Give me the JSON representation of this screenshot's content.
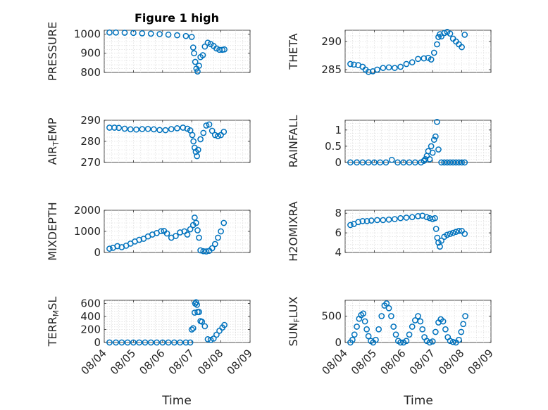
{
  "figure_title": "Figure 1 high",
  "chart_data": [
    {
      "type": "scatter",
      "panel": "pressure",
      "ylabel_parts": [
        {
          "t": "PRESSURE"
        }
      ],
      "ylim": [
        800,
        1020
      ],
      "yticks": [
        800,
        900,
        1000
      ],
      "xlim": [
        0,
        5
      ],
      "xticks": [
        0,
        1,
        2,
        3,
        4,
        5
      ],
      "x": [
        0.18,
        0.4,
        0.7,
        1.0,
        1.3,
        1.6,
        1.9,
        2.2,
        2.5,
        2.8,
        3.0,
        3.05,
        3.08,
        3.12,
        3.16,
        3.2,
        3.25,
        3.3,
        3.38,
        3.45,
        3.55,
        3.65,
        3.75,
        3.85,
        3.95,
        4.05,
        4.12
      ],
      "y": [
        1008,
        1008,
        1007,
        1006,
        1004,
        1002,
        1000,
        997,
        994,
        990,
        985,
        930,
        900,
        855,
        820,
        805,
        835,
        880,
        890,
        935,
        955,
        948,
        938,
        925,
        918,
        918,
        920
      ]
    },
    {
      "type": "scatter",
      "panel": "theta",
      "ylabel_parts": [
        {
          "t": "THETA"
        }
      ],
      "ylim": [
        284.5,
        292
      ],
      "yticks": [
        285,
        290
      ],
      "xlim": [
        0,
        5
      ],
      "xticks": [
        0,
        1,
        2,
        3,
        4,
        5
      ],
      "x": [
        0.18,
        0.3,
        0.45,
        0.6,
        0.7,
        0.8,
        0.95,
        1.1,
        1.3,
        1.5,
        1.7,
        1.9,
        2.1,
        2.3,
        2.5,
        2.7,
        2.85,
        2.95,
        3.05,
        3.15,
        3.2,
        3.25,
        3.3,
        3.4,
        3.5,
        3.6,
        3.7,
        3.8,
        3.9,
        4.0,
        4.1
      ],
      "y": [
        286.0,
        285.9,
        285.8,
        285.5,
        285.0,
        284.6,
        284.7,
        285.0,
        285.3,
        285.4,
        285.3,
        285.5,
        286.0,
        286.3,
        286.9,
        287.0,
        287.1,
        286.8,
        288.0,
        289.5,
        290.8,
        291.3,
        290.9,
        291.5,
        291.7,
        291.4,
        290.5,
        290.0,
        289.5,
        289.0,
        291.2
      ]
    },
    {
      "type": "scatter",
      "panel": "air_temp",
      "ylabel_parts": [
        {
          "t": "AIR"
        },
        {
          "t": "T",
          "sub": true
        },
        {
          "t": "EMP"
        }
      ],
      "ylim": [
        270,
        290
      ],
      "yticks": [
        270,
        280,
        290
      ],
      "xlim": [
        0,
        5
      ],
      "xticks": [
        0,
        1,
        2,
        3,
        4,
        5
      ],
      "x": [
        0.18,
        0.35,
        0.5,
        0.7,
        0.9,
        1.1,
        1.3,
        1.5,
        1.7,
        1.9,
        2.1,
        2.3,
        2.5,
        2.7,
        2.85,
        2.95,
        3.02,
        3.06,
        3.1,
        3.14,
        3.18,
        3.22,
        3.3,
        3.4,
        3.5,
        3.6,
        3.7,
        3.8,
        3.9,
        4.0,
        4.1
      ],
      "y": [
        286.5,
        286.5,
        286.4,
        286.0,
        285.7,
        285.6,
        285.8,
        285.9,
        285.7,
        285.4,
        285.3,
        285.8,
        286.2,
        286.5,
        286.0,
        285.2,
        283.0,
        280.0,
        277.0,
        275.0,
        273.0,
        276.0,
        281.0,
        284.0,
        287.5,
        288.0,
        285.0,
        283.0,
        282.5,
        283.0,
        284.5
      ]
    },
    {
      "type": "scatter",
      "panel": "rainfall",
      "ylabel_parts": [
        {
          "t": "RAINFALL"
        }
      ],
      "ylim": [
        0,
        1.3
      ],
      "yticks": [
        0,
        0.5,
        1
      ],
      "xlim": [
        0,
        5
      ],
      "xticks": [
        0,
        1,
        2,
        3,
        4,
        5
      ],
      "x": [
        0.18,
        0.4,
        0.6,
        0.8,
        1.0,
        1.2,
        1.4,
        1.6,
        1.8,
        2.0,
        2.2,
        2.4,
        2.6,
        2.7,
        2.75,
        2.8,
        2.85,
        2.9,
        2.95,
        3.0,
        3.05,
        3.1,
        3.15,
        3.2,
        3.3,
        3.4,
        3.5,
        3.6,
        3.7,
        3.8,
        3.9,
        4.0,
        4.1
      ],
      "y": [
        0,
        0,
        0,
        0,
        0,
        0,
        0,
        0.08,
        0,
        0,
        0,
        0,
        0,
        0.05,
        0.1,
        0.2,
        0.35,
        0.1,
        0.5,
        0.3,
        0.7,
        0.8,
        1.25,
        0.4,
        0,
        0,
        0,
        0,
        0,
        0,
        0,
        0,
        0
      ]
    },
    {
      "type": "scatter",
      "panel": "mixdepth",
      "ylabel_parts": [
        {
          "t": "MIXDEPTH"
        }
      ],
      "ylim": [
        0,
        2000
      ],
      "yticks": [
        0,
        1000,
        2000
      ],
      "xlim": [
        0,
        5
      ],
      "xticks": [
        0,
        1,
        2,
        3,
        4,
        5
      ],
      "x": [
        0.18,
        0.3,
        0.45,
        0.6,
        0.75,
        0.9,
        1.05,
        1.2,
        1.35,
        1.5,
        1.65,
        1.8,
        1.95,
        2.05,
        2.15,
        2.3,
        2.45,
        2.6,
        2.75,
        2.85,
        2.95,
        3.05,
        3.1,
        3.15,
        3.2,
        3.25,
        3.3,
        3.4,
        3.5,
        3.6,
        3.7,
        3.8,
        3.9,
        4.0,
        4.1
      ],
      "y": [
        180,
        220,
        300,
        250,
        320,
        420,
        520,
        600,
        650,
        760,
        850,
        920,
        1010,
        1020,
        900,
        700,
        780,
        950,
        1000,
        850,
        1100,
        1300,
        1650,
        1400,
        1050,
        700,
        100,
        60,
        50,
        80,
        200,
        400,
        700,
        1000,
        1400
      ]
    },
    {
      "type": "scatter",
      "panel": "h2omixra",
      "ylabel_parts": [
        {
          "t": "H2OMIXRA"
        }
      ],
      "ylim": [
        4,
        8.3
      ],
      "yticks": [
        4,
        6,
        8
      ],
      "xlim": [
        0,
        5
      ],
      "xticks": [
        0,
        1,
        2,
        3,
        4,
        5
      ],
      "x": [
        0.18,
        0.3,
        0.45,
        0.6,
        0.75,
        0.9,
        1.1,
        1.3,
        1.5,
        1.7,
        1.9,
        2.1,
        2.3,
        2.5,
        2.65,
        2.8,
        2.9,
        3.0,
        3.08,
        3.12,
        3.16,
        3.2,
        3.25,
        3.3,
        3.4,
        3.5,
        3.6,
        3.7,
        3.8,
        3.9,
        4.0,
        4.1
      ],
      "y": [
        6.8,
        6.9,
        7.1,
        7.2,
        7.2,
        7.25,
        7.3,
        7.3,
        7.35,
        7.4,
        7.5,
        7.55,
        7.6,
        7.7,
        7.75,
        7.6,
        7.5,
        7.4,
        7.5,
        6.4,
        5.5,
        5.0,
        4.6,
        5.2,
        5.6,
        5.8,
        5.9,
        6.0,
        6.1,
        6.2,
        6.2,
        5.9
      ]
    },
    {
      "type": "scatter",
      "panel": "terr_msl",
      "ylabel_parts": [
        {
          "t": "TERR"
        },
        {
          "t": "M",
          "sub": true
        },
        {
          "t": "SL"
        }
      ],
      "ylim": [
        0,
        650
      ],
      "yticks": [
        0,
        200,
        400,
        600
      ],
      "xlim": [
        0,
        5
      ],
      "xticks": [
        0,
        1,
        2,
        3,
        4,
        5
      ],
      "x": [
        0.18,
        0.4,
        0.6,
        0.8,
        1.0,
        1.2,
        1.4,
        1.6,
        1.8,
        2.0,
        2.2,
        2.4,
        2.6,
        2.8,
        2.95,
        3.0,
        3.05,
        3.1,
        3.12,
        3.15,
        3.18,
        3.2,
        3.25,
        3.3,
        3.35,
        3.45,
        3.55,
        3.65,
        3.75,
        3.85,
        3.95,
        4.05,
        4.12
      ],
      "y": [
        0,
        0,
        0,
        0,
        0,
        0,
        0,
        0,
        0,
        0,
        0,
        0,
        0,
        0,
        0,
        200,
        220,
        460,
        600,
        620,
        580,
        470,
        470,
        330,
        320,
        250,
        50,
        40,
        60,
        120,
        180,
        230,
        270
      ]
    },
    {
      "type": "scatter",
      "panel": "sun_flux",
      "ylabel_parts": [
        {
          "t": "SUN"
        },
        {
          "t": "F",
          "sub": true
        },
        {
          "t": "LUX"
        }
      ],
      "ylim": [
        0,
        800
      ],
      "yticks": [
        0,
        500
      ],
      "xlim": [
        0,
        5
      ],
      "xticks": [
        0,
        1,
        2,
        3,
        4,
        5
      ],
      "x": [
        0.18,
        0.25,
        0.32,
        0.4,
        0.48,
        0.55,
        0.62,
        0.68,
        0.74,
        0.8,
        0.88,
        0.96,
        1.05,
        1.15,
        1.25,
        1.35,
        1.42,
        1.5,
        1.58,
        1.66,
        1.74,
        1.82,
        1.9,
        2.0,
        2.1,
        2.2,
        2.3,
        2.4,
        2.5,
        2.58,
        2.65,
        2.72,
        2.8,
        2.9,
        3.0,
        3.1,
        3.2,
        3.28,
        3.36,
        3.44,
        3.52,
        3.6,
        3.7,
        3.8,
        3.9,
        3.98,
        4.05,
        4.12
      ],
      "y": [
        0,
        50,
        150,
        300,
        450,
        520,
        550,
        400,
        250,
        120,
        30,
        0,
        50,
        250,
        500,
        700,
        740,
        650,
        500,
        300,
        150,
        30,
        0,
        0,
        30,
        150,
        300,
        420,
        500,
        400,
        250,
        100,
        30,
        0,
        20,
        200,
        380,
        440,
        400,
        250,
        100,
        30,
        10,
        0,
        50,
        200,
        350,
        500
      ]
    }
  ],
  "x_tick_labels": [
    "08/04",
    "08/05",
    "08/06",
    "08/07",
    "08/08",
    "08/09"
  ],
  "x_axis_label": "Time"
}
